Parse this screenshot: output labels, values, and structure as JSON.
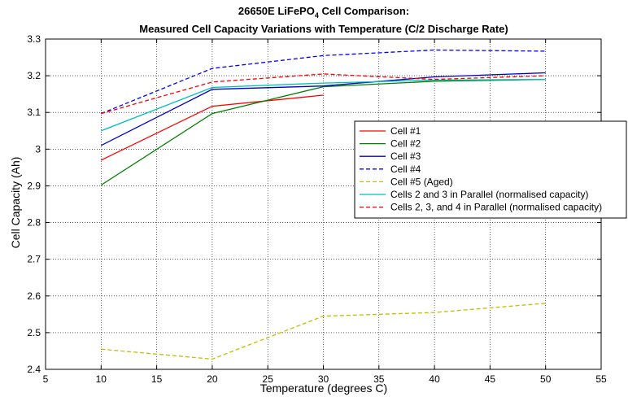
{
  "chart_data": {
    "type": "line",
    "title_line1_main": "26650E LiFePO",
    "title_line1_sub": "4",
    "title_line1_tail": " Cell Comparison:",
    "title_line2": "Measured Cell Capacity Variations with Temperature (C/2 Discharge Rate)",
    "xlabel": "Temperature (degrees C)",
    "ylabel": "Cell Capacity (Ah)",
    "xlim": [
      5,
      55
    ],
    "ylim": [
      2.4,
      3.3
    ],
    "xticks": [
      "5",
      "10",
      "15",
      "20",
      "25",
      "30",
      "35",
      "40",
      "45",
      "50",
      "55"
    ],
    "yticks": [
      "2.4",
      "2.5",
      "2.6",
      "2.7",
      "2.8",
      "2.9",
      "3",
      "3.1",
      "3.2",
      "3.3"
    ],
    "grid": true,
    "legend_position": "right",
    "series": [
      {
        "name": "Cell #1",
        "color": "#ff0000",
        "dash": "solid",
        "x": [
          10,
          20,
          30
        ],
        "y": [
          2.97,
          3.117,
          3.147
        ]
      },
      {
        "name": "Cell #2",
        "color": "#008000",
        "dash": "solid",
        "x": [
          10,
          20,
          30,
          40,
          50
        ],
        "y": [
          2.902,
          3.097,
          3.17,
          3.185,
          3.19
        ]
      },
      {
        "name": "Cell #3",
        "color": "#0000c0",
        "dash": "solid",
        "x": [
          10,
          20,
          30,
          40,
          50
        ],
        "y": [
          3.01,
          3.163,
          3.172,
          3.197,
          3.208
        ]
      },
      {
        "name": "Cell #4",
        "color": "#0000ff",
        "dash": "dashed",
        "x": [
          10,
          20,
          30,
          40,
          50
        ],
        "y": [
          3.097,
          3.22,
          3.255,
          3.27,
          3.267
        ]
      },
      {
        "name": "Cell #5 (Aged)",
        "color": "#c0c000",
        "dash": "dashed",
        "x": [
          10,
          20,
          30,
          40,
          50
        ],
        "y": [
          2.455,
          2.428,
          2.545,
          2.555,
          2.58
        ]
      },
      {
        "name": "Cells 2 and 3 in Parallel (normalised capacity)",
        "color": "#00bfbf",
        "dash": "solid",
        "x": [
          10,
          20,
          30,
          40,
          50
        ],
        "y": [
          3.05,
          3.168,
          3.18,
          3.188,
          3.19
        ]
      },
      {
        "name": "Cells 2, 3, and 4 in Parallel (normalised capacity)",
        "color": "#ff0000",
        "dash": "dashed",
        "x": [
          10,
          20,
          30,
          40,
          50
        ],
        "y": [
          3.097,
          3.183,
          3.205,
          3.19,
          3.2
        ]
      }
    ]
  }
}
